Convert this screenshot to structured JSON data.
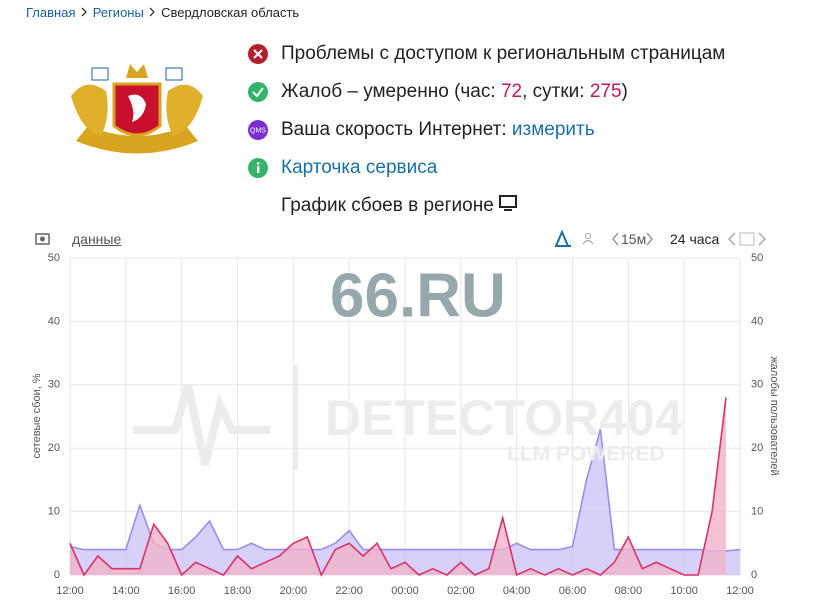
{
  "breadcrumb": [
    "Главная",
    "Регионы",
    "Свердловская область"
  ],
  "status": {
    "problem": "Проблемы с доступом к региональным страницам",
    "complaints": {
      "prefix": "Жалоб – умеренно (час: ",
      "hour": 72,
      "middle": ", сутки: ",
      "day": 275,
      "suffix": ")"
    },
    "speed": {
      "label": "Ваша скорость Интернет:",
      "link": "измерить",
      "icon": "QMS"
    },
    "card": "Карточка сервиса",
    "graph": "График сбоев в регионе"
  },
  "toolbar": {
    "data_link": "данные",
    "interval": "15м",
    "period": "24 часа"
  },
  "watermarks": [
    "66.RU",
    "DETECTOR404",
    "LLM POWERED"
  ],
  "chart_data": {
    "type": "area",
    "ylabel": "сетевые сбои, %",
    "y2label": "жалобы пользователей",
    "xlim": [
      0,
      24
    ],
    "xticks": [
      {
        "value": 0,
        "label": "12:00"
      },
      {
        "value": 2,
        "label": "14:00"
      },
      {
        "value": 4,
        "label": "16:00"
      },
      {
        "value": 6,
        "label": "18:00"
      },
      {
        "value": 8,
        "label": "20:00"
      },
      {
        "value": 10,
        "label": "22:00"
      },
      {
        "value": 12,
        "label": "00:00"
      },
      {
        "value": 14,
        "label": "02:00"
      },
      {
        "value": 16,
        "label": "04:00"
      },
      {
        "value": 18,
        "label": "06:00"
      },
      {
        "value": 20,
        "label": "08:00"
      },
      {
        "value": 22,
        "label": "10:00"
      },
      {
        "value": 24,
        "label": "12:00"
      }
    ],
    "ylim": [
      0,
      50
    ],
    "yticks": [
      0,
      10,
      20,
      30,
      40,
      50
    ],
    "y2lim": [
      0,
      50
    ],
    "y2ticks": [
      0,
      10,
      20,
      30,
      40,
      50
    ],
    "grid": true,
    "x": [
      0,
      0.5,
      1,
      1.5,
      2,
      2.5,
      3,
      3.5,
      4,
      4.5,
      5,
      5.5,
      6,
      6.5,
      7,
      7.5,
      8,
      8.5,
      9,
      9.5,
      10,
      10.5,
      11,
      11.5,
      12,
      12.5,
      13,
      13.5,
      14,
      14.5,
      15,
      15.5,
      16,
      16.5,
      17,
      17.5,
      18,
      18.5,
      19,
      19.5,
      20,
      20.5,
      21,
      21.5,
      22,
      22.5,
      23,
      23.5,
      24
    ],
    "series": [
      {
        "color": "#9b8cf0",
        "fill": "#cdc4f8",
        "values": [
          4.5,
          4,
          4,
          4,
          4,
          11,
          5,
          4,
          4,
          6,
          8.5,
          4,
          4,
          5,
          4,
          4,
          4,
          4,
          4,
          5,
          7,
          4,
          4,
          4,
          4,
          4,
          4,
          4,
          4,
          4,
          4,
          4,
          5,
          4,
          4,
          4,
          4.5,
          15,
          23,
          4,
          4,
          4,
          4,
          4,
          4,
          4,
          3.8,
          3.8,
          4
        ]
      },
      {
        "color": "#d6336c",
        "fill": "#f1b3c9",
        "axis": "y2",
        "values": [
          5,
          0,
          3,
          1,
          1,
          1,
          8,
          5,
          0,
          2,
          1,
          0,
          3,
          1,
          2,
          3,
          5,
          6,
          0,
          4,
          5,
          3,
          5,
          1,
          2,
          0,
          1,
          0,
          2,
          0,
          1,
          9,
          0,
          1,
          0,
          1,
          0,
          1,
          0,
          2,
          6,
          1,
          2,
          1,
          0,
          0,
          10,
          28,
          null
        ]
      }
    ]
  }
}
